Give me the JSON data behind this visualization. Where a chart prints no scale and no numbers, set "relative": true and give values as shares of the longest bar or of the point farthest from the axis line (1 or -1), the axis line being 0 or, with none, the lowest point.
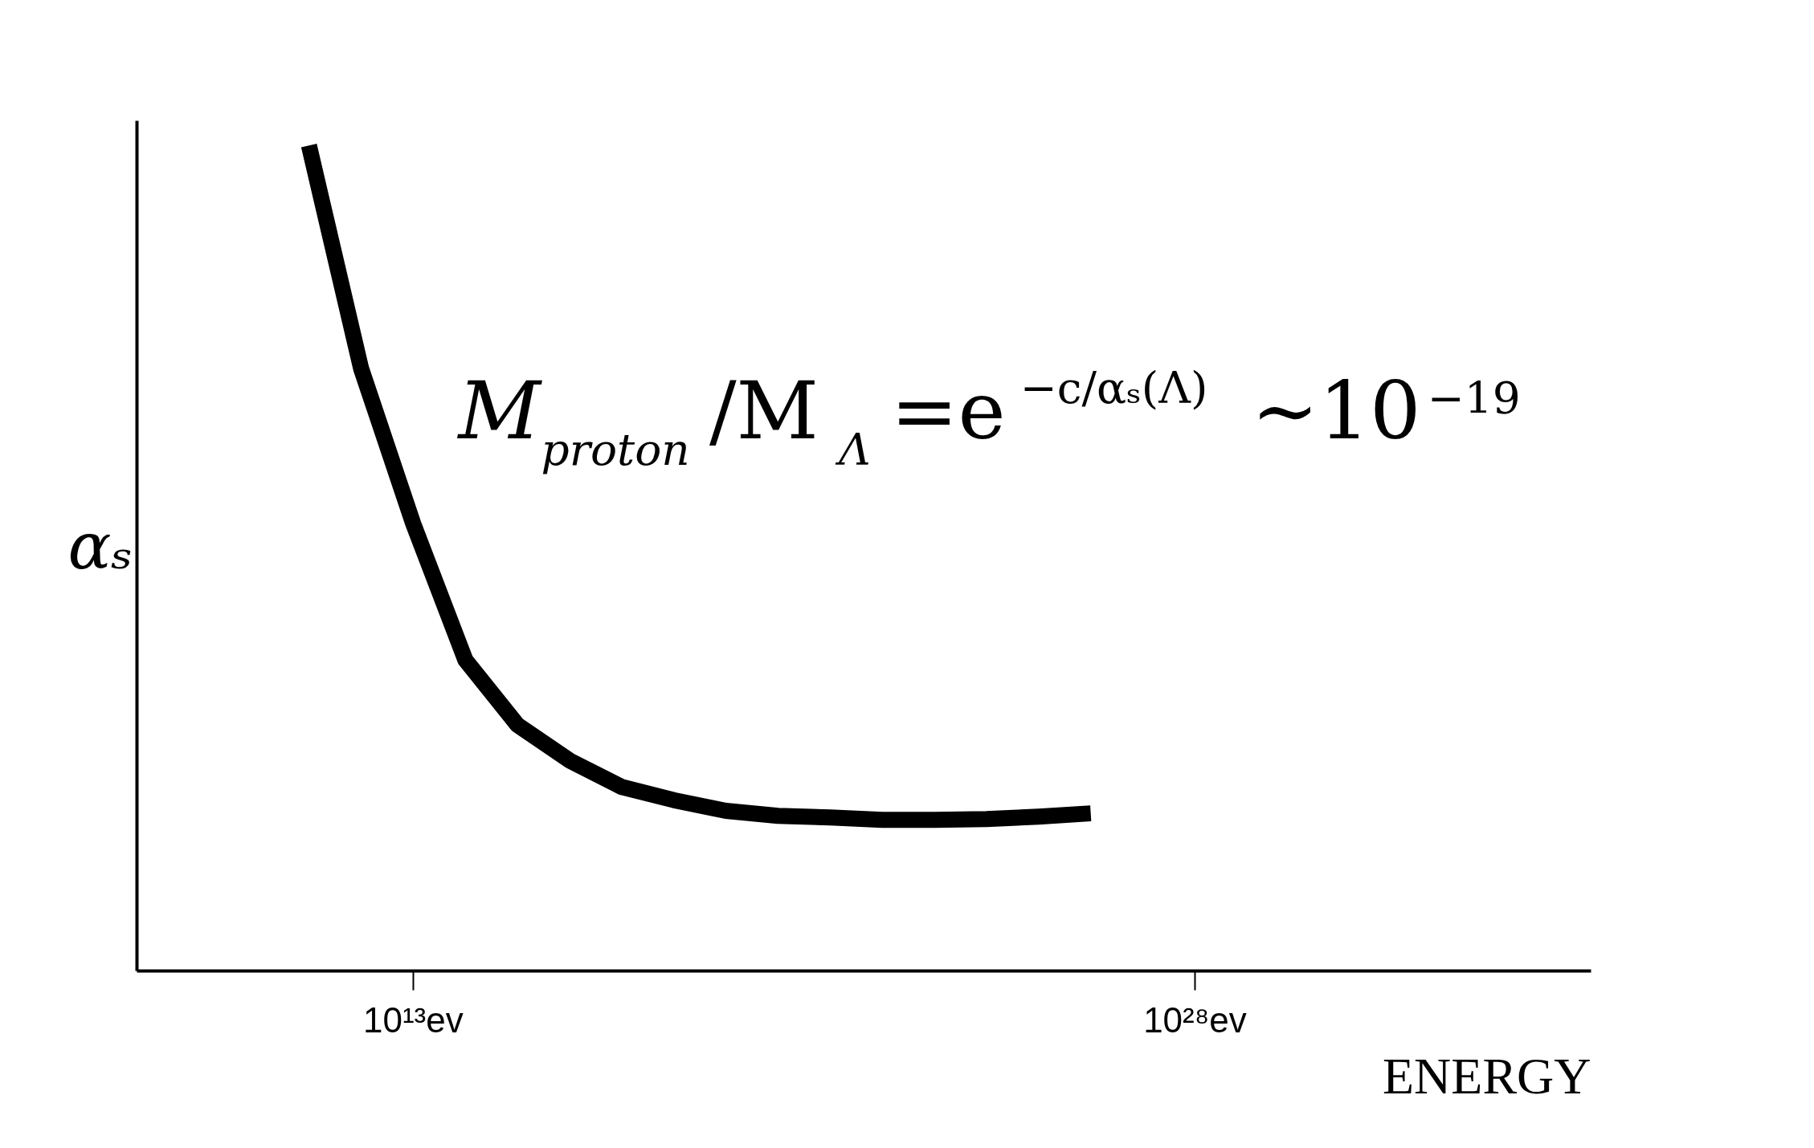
{
  "chart_data": {
    "type": "line",
    "relative": true,
    "xlabel": "ENERGY",
    "ylabel": "αₛ",
    "categories": [
      null,
      null,
      "10¹³ev",
      null,
      null,
      null,
      null,
      null,
      null,
      null,
      null,
      null,
      null,
      null,
      null,
      null,
      null,
      "10²⁸ev"
    ],
    "series": [
      {
        "color": "#000000",
        "values": [
          1,
          0.73,
          0.542,
          0.377,
          0.298,
          0.255,
          0.223,
          0.207,
          0.194,
          0.188,
          0.186,
          0.183,
          0.183,
          0.184,
          0.187,
          0.191,
          null,
          null
        ]
      }
    ],
    "grid": false,
    "annotations": [
      "M$_{proton}$/M$_{Λ}$=e$^{−c/αₛ(Λ)}$∼10$^{−19}$"
    ]
  }
}
